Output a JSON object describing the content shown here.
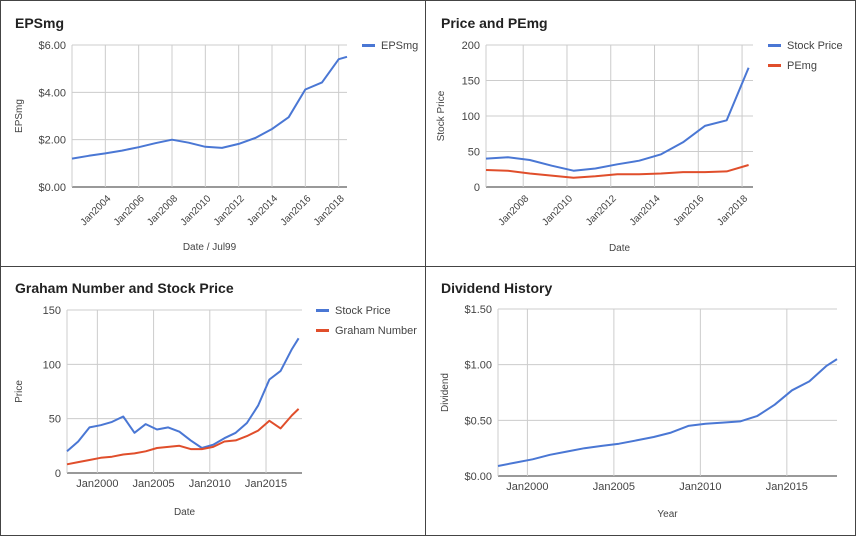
{
  "chart_data": [
    {
      "type": "line",
      "title": "EPSmg",
      "xlabel": "Date / Jul99",
      "ylabel": "EPSmg",
      "ylim": [
        0,
        6
      ],
      "yticks": [
        "$0.00",
        "$2.00",
        "$4.00",
        "$6.00"
      ],
      "ytick_values": [
        0,
        2,
        4,
        6
      ],
      "xlim": [
        2002,
        2018.5
      ],
      "xticks": [
        "Jan2004",
        "Jan2006",
        "Jan2008",
        "Jan2010",
        "Jan2012",
        "Jan2014",
        "Jan2016",
        "Jan2018"
      ],
      "xtick_values": [
        2004,
        2006,
        2008,
        2010,
        2012,
        2014,
        2016,
        2018
      ],
      "grid": true,
      "legend_position": "top-right",
      "series": [
        {
          "name": "EPSmg",
          "color": "#4a77d4",
          "x": [
            2002.0,
            2003.0,
            2004.0,
            2005.0,
            2006.0,
            2007.0,
            2008.0,
            2009.0,
            2010.0,
            2011.0,
            2012.0,
            2013.0,
            2014.0,
            2015.0,
            2016.0,
            2017.0,
            2018.0,
            2018.5
          ],
          "values": [
            1.2,
            1.32,
            1.42,
            1.54,
            1.68,
            1.85,
            2.0,
            1.87,
            1.7,
            1.65,
            1.82,
            2.07,
            2.45,
            2.95,
            4.12,
            4.42,
            5.4,
            5.5
          ]
        }
      ]
    },
    {
      "type": "line",
      "title": "Price and PEmg",
      "xlabel": "Date",
      "ylabel": "Stock Price",
      "ylim": [
        0,
        200
      ],
      "yticks": [
        "0",
        "50",
        "100",
        "150",
        "200"
      ],
      "ytick_values": [
        0,
        50,
        100,
        150,
        200
      ],
      "xlim": [
        2006.3,
        2018.5
      ],
      "xticks": [
        "Jan2008",
        "Jan2010",
        "Jan2012",
        "Jan2014",
        "Jan2016",
        "Jan2018"
      ],
      "xtick_values": [
        2008,
        2010,
        2012,
        2014,
        2016,
        2018
      ],
      "grid": true,
      "legend_position": "top-right",
      "series": [
        {
          "name": "Stock Price",
          "color": "#4a77d4",
          "x": [
            2006.3,
            2007.3,
            2008.3,
            2009.3,
            2010.3,
            2011.3,
            2012.3,
            2013.3,
            2014.3,
            2015.3,
            2016.3,
            2017.3,
            2018.3
          ],
          "values": [
            40,
            42,
            38,
            30,
            23,
            26,
            32,
            37,
            46,
            63,
            86,
            94,
            168
          ]
        },
        {
          "name": "PEmg",
          "color": "#e04e2b",
          "x": [
            2006.3,
            2007.3,
            2008.3,
            2009.3,
            2010.3,
            2011.3,
            2012.3,
            2013.3,
            2014.3,
            2015.3,
            2016.3,
            2017.3,
            2018.3
          ],
          "values": [
            24,
            23,
            19,
            16,
            13,
            15,
            18,
            18,
            19,
            21,
            21,
            22,
            31
          ]
        }
      ]
    },
    {
      "type": "line",
      "title": "Graham Number and Stock Price",
      "xlabel": "Date",
      "ylabel": "Price",
      "ylim": [
        0,
        150
      ],
      "yticks": [
        "0",
        "50",
        "100",
        "150"
      ],
      "ytick_values": [
        0,
        50,
        100,
        150
      ],
      "xlim": [
        1997.3,
        2018.2
      ],
      "xticks": [
        "Jan2000",
        "Jan2005",
        "Jan2010",
        "Jan2015"
      ],
      "xtick_values": [
        2000,
        2005,
        2010,
        2015
      ],
      "grid": true,
      "legend_position": "top-right",
      "series": [
        {
          "name": "Stock Price",
          "color": "#4a77d4",
          "x": [
            1997.3,
            1998.3,
            1999.3,
            2000.3,
            2001.3,
            2002.3,
            2003.3,
            2004.3,
            2005.3,
            2006.3,
            2007.3,
            2008.3,
            2009.3,
            2010.3,
            2011.3,
            2012.3,
            2013.3,
            2014.3,
            2015.3,
            2016.3,
            2017.3,
            2017.9
          ],
          "values": [
            20,
            29,
            42,
            44,
            47,
            52,
            37,
            45,
            40,
            42,
            38,
            30,
            23,
            26,
            32,
            37,
            46,
            62,
            86,
            94,
            114,
            124
          ]
        },
        {
          "name": "Graham Number",
          "color": "#e04e2b",
          "x": [
            1997.3,
            1998.3,
            1999.3,
            2000.3,
            2001.3,
            2002.3,
            2003.3,
            2004.3,
            2005.3,
            2006.3,
            2007.3,
            2008.3,
            2009.3,
            2010.3,
            2011.3,
            2012.3,
            2013.3,
            2014.3,
            2015.3,
            2016.3,
            2017.3,
            2017.9
          ],
          "values": [
            8,
            10,
            12,
            14,
            15,
            17,
            18,
            20,
            23,
            24,
            25,
            22,
            22,
            24,
            29,
            30,
            34,
            39,
            48,
            41,
            53,
            59
          ]
        }
      ]
    },
    {
      "type": "line",
      "title": "Dividend History",
      "xlabel": "Year",
      "ylabel": "Dividend",
      "ylim": [
        0,
        1.5
      ],
      "yticks": [
        "$0.00",
        "$0.50",
        "$1.00",
        "$1.50"
      ],
      "ytick_values": [
        0,
        0.5,
        1.0,
        1.5
      ],
      "xlim": [
        1998.3,
        2017.9
      ],
      "xticks": [
        "Jan2000",
        "Jan2005",
        "Jan2010",
        "Jan2015"
      ],
      "xtick_values": [
        2000,
        2005,
        2010,
        2015
      ],
      "grid": true,
      "legend_position": "none",
      "series": [
        {
          "name": "Dividend",
          "color": "#4a77d4",
          "x": [
            1998.3,
            1999.3,
            2000.3,
            2001.3,
            2002.3,
            2003.3,
            2004.3,
            2005.3,
            2006.3,
            2007.3,
            2008.3,
            2009.3,
            2010.3,
            2011.3,
            2012.3,
            2013.3,
            2014.3,
            2015.3,
            2016.3,
            2017.3,
            2017.9
          ],
          "values": [
            0.09,
            0.12,
            0.15,
            0.19,
            0.22,
            0.25,
            0.27,
            0.29,
            0.32,
            0.35,
            0.39,
            0.45,
            0.47,
            0.48,
            0.49,
            0.54,
            0.64,
            0.77,
            0.85,
            0.99,
            1.05
          ]
        }
      ]
    }
  ]
}
